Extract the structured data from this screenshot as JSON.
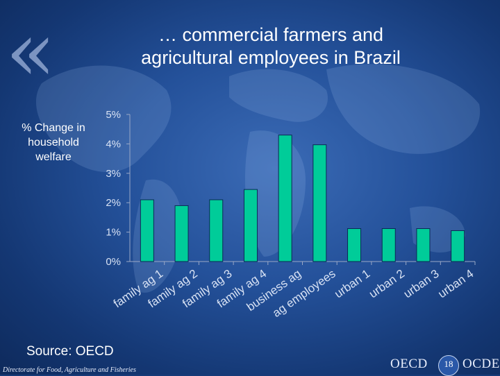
{
  "slide": {
    "title_line1": "… commercial farmers and",
    "title_line2": "agricultural employees in Brazil",
    "ylabel_line1": "% Change in",
    "ylabel_line2": "household",
    "ylabel_line3": "welfare",
    "source": "Source: OECD",
    "footer": "Directorate for Food, Agriculture and Fisheries",
    "logo_left": "OECD",
    "logo_right": "OCDE",
    "page_number": "18",
    "quote_glyph": "«",
    "colors": {
      "bar": "#00cc99",
      "axis": "#9aa8c6",
      "text": "#ffffff"
    }
  },
  "chart_data": {
    "type": "bar",
    "categories": [
      "family ag 1",
      "family ag 2",
      "family ag 3",
      "family ag 4",
      "business ag",
      "ag employees",
      "urban 1",
      "urban 2",
      "urban 3",
      "urban 4"
    ],
    "values": [
      2.1,
      1.9,
      2.1,
      2.45,
      4.3,
      3.97,
      1.12,
      1.12,
      1.12,
      1.05
    ],
    "ylim": [
      0,
      5
    ],
    "yticks": [
      "0%",
      "1%",
      "2%",
      "3%",
      "4%",
      "5%"
    ],
    "grid": false,
    "legend": "none"
  }
}
